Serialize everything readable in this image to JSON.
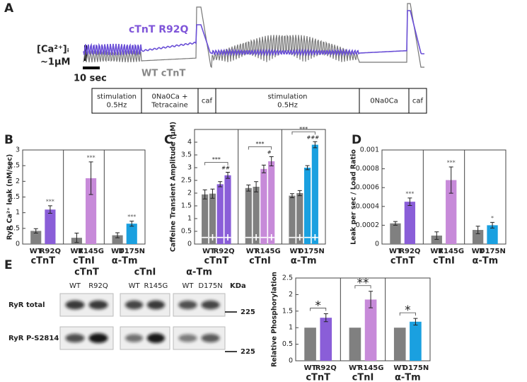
{
  "panels": [
    "A",
    "B",
    "C",
    "D",
    "E"
  ],
  "panel_a": {
    "mutant_label": "cTnT R92Q",
    "wt_label": "WT cTnT",
    "ca_label": "[Ca²⁺]ᵢ",
    "ca_scale": "~1μM",
    "time_scale": "10 sec",
    "protocol": [
      [
        "stimulation",
        "0.5Hz"
      ],
      [
        "0Na0Ca +",
        "Tetracaine"
      ],
      [
        "caf"
      ],
      [
        "stimulation",
        "0.5Hz"
      ],
      [
        "0Na0Ca"
      ],
      [
        "caf"
      ]
    ]
  },
  "panel_e_blot": {
    "proteins": [
      "cTnT",
      "cTnI",
      "α-Tm"
    ],
    "lanes": [
      "WT",
      "R92Q",
      "WT",
      "R145G",
      "WT",
      "D175N"
    ],
    "lane_colors": [
      "#808080",
      "#8a5ed8",
      "#808080",
      "#c78ad9",
      "#808080",
      "#1aa0e0"
    ],
    "rows": [
      "RyR total",
      "RyR P-S2814"
    ],
    "kda_label": "KDa",
    "markers": [
      "225",
      "225"
    ]
  },
  "chart_data": [
    {
      "type": "bar",
      "ylabel": "RyR Ca²⁺ leak (nM/sec)",
      "groups": [
        "cTnT",
        "cTnI",
        "α-Tm"
      ],
      "categories": [
        "WT",
        "R92Q",
        "WT",
        "R145G",
        "WT",
        "D175N"
      ],
      "colors": [
        "#808080",
        "#8a5ed8",
        "#808080",
        "#c78ad9",
        "#808080",
        "#1aa0e0"
      ],
      "values": [
        0.42,
        1.1,
        0.2,
        2.1,
        0.28,
        0.65
      ],
      "errors": [
        0.07,
        0.12,
        0.15,
        0.52,
        0.08,
        0.08
      ],
      "significance": [
        null,
        "***",
        null,
        "***",
        null,
        "***"
      ],
      "significance_bracket": false,
      "ylim": [
        0,
        3
      ],
      "yticks": [
        0,
        0.5,
        1,
        1.5,
        2,
        2.5,
        3
      ]
    },
    {
      "type": "bar",
      "ylabel": "Caffeine Transient Amplitude (μM)",
      "groups": [
        "cTnT",
        "cTnI",
        "α-Tm"
      ],
      "categories": [
        "WT",
        "R92Q",
        "WT",
        "R145G",
        "WT",
        "D175N"
      ],
      "colors": [
        "#808080",
        "#8a5ed8",
        "#808080",
        "#c78ad9",
        "#808080",
        "#1aa0e0"
      ],
      "series": [
        {
          "name": "−",
          "values": [
            1.95,
            2.35,
            2.2,
            2.95,
            1.9,
            3.0
          ],
          "errors": [
            0.18,
            0.1,
            0.12,
            0.15,
            0.08,
            0.08
          ]
        },
        {
          "name": "+",
          "values": [
            1.98,
            2.7,
            2.25,
            3.25,
            2.0,
            3.9
          ],
          "errors": [
            0.18,
            0.12,
            0.2,
            0.18,
            0.1,
            0.12
          ]
        }
      ],
      "significance": [
        null,
        "***",
        null,
        "***",
        null,
        "***"
      ],
      "significance_bracket": true,
      "significance_plus": [
        null,
        "##",
        null,
        "#",
        null,
        "###"
      ],
      "ylim": [
        0,
        4.5
      ],
      "yticks": [
        0,
        0.5,
        1,
        1.5,
        2,
        2.5,
        3,
        3.5,
        4
      ]
    },
    {
      "type": "bar",
      "ylabel": "Leak per sec / Load Ratio",
      "groups": [
        "cTnT",
        "cTnI",
        "α-Tm"
      ],
      "categories": [
        "WT",
        "R92Q",
        "WT",
        "R145G",
        "WT",
        "D175N"
      ],
      "colors": [
        "#808080",
        "#8a5ed8",
        "#808080",
        "#c78ad9",
        "#808080",
        "#1aa0e0"
      ],
      "values": [
        0.00022,
        0.00045,
        9e-05,
        0.00068,
        0.00015,
        0.0002
      ],
      "errors": [
        2e-05,
        4e-05,
        4e-05,
        0.00014,
        4e-05,
        3e-05
      ],
      "significance": [
        null,
        "***",
        null,
        "***",
        null,
        "*"
      ],
      "significance_bracket": false,
      "ylim": [
        0,
        0.001
      ],
      "yticks": [
        0,
        0.0002,
        0.0004,
        0.0006,
        0.0008,
        0.001
      ]
    },
    {
      "type": "bar",
      "ylabel": "Relative Phosphorylation",
      "groups": [
        "cTnT",
        "cTnI",
        "α-Tm"
      ],
      "categories": [
        "WT",
        "R92Q",
        "WT",
        "R145G",
        "WT",
        "D175N"
      ],
      "colors": [
        "#808080",
        "#8a5ed8",
        "#808080",
        "#c78ad9",
        "#808080",
        "#1aa0e0"
      ],
      "values": [
        1,
        1.3,
        1,
        1.85,
        1,
        1.18
      ],
      "errors": [
        null,
        0.12,
        null,
        0.25,
        null,
        0.1
      ],
      "significance": [
        null,
        "*",
        null,
        "**",
        null,
        "*"
      ],
      "significance_bracket": true,
      "ylim": [
        0,
        2.5
      ],
      "yticks": [
        0,
        0.5,
        1,
        1.5,
        2,
        2.5
      ]
    }
  ]
}
